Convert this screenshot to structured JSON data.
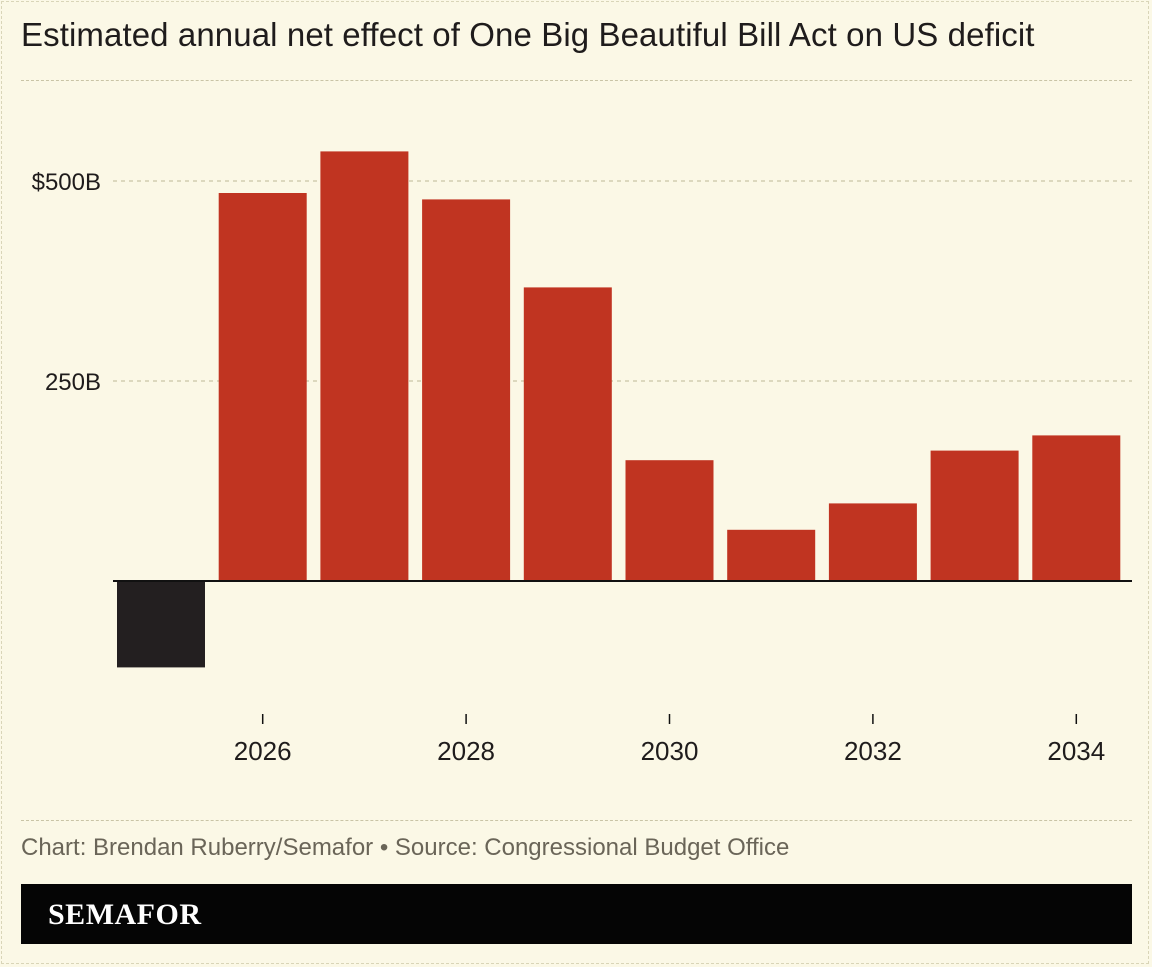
{
  "title": "Estimated annual net effect of One Big Beautiful Bill Act on US deficit",
  "credit": "Chart: Brendan Ruberry/Semafor • Source: Congressional Budget Office",
  "brand": "SEMAFOR",
  "colors": {
    "background": "#fbf8e6",
    "positive_bar": "#c03421",
    "negative_bar": "#231f20",
    "gridline": "#c9c4a6",
    "text": "#1f1c1c"
  },
  "chart_data": {
    "type": "bar",
    "title": "Estimated annual net effect of One Big Beautiful Bill Act on US deficit",
    "xlabel": "",
    "ylabel": "",
    "x": [
      2025,
      2026,
      2027,
      2028,
      2029,
      2030,
      2031,
      2032,
      2033,
      2034
    ],
    "values": [
      -108,
      485,
      537,
      477,
      367,
      151,
      64,
      97,
      163,
      182
    ],
    "units": "billions of US dollars",
    "ylim": [
      -108,
      537
    ],
    "y_ticks": [
      {
        "value": 250,
        "label": "250B"
      },
      {
        "value": 500,
        "label": "$500B"
      }
    ],
    "x_ticks": [
      {
        "value": 2026,
        "label": "2026"
      },
      {
        "value": 2028,
        "label": "2028"
      },
      {
        "value": 2030,
        "label": "2030"
      },
      {
        "value": 2032,
        "label": "2032"
      },
      {
        "value": 2034,
        "label": "2034"
      }
    ],
    "grid": true,
    "legend": "none"
  }
}
